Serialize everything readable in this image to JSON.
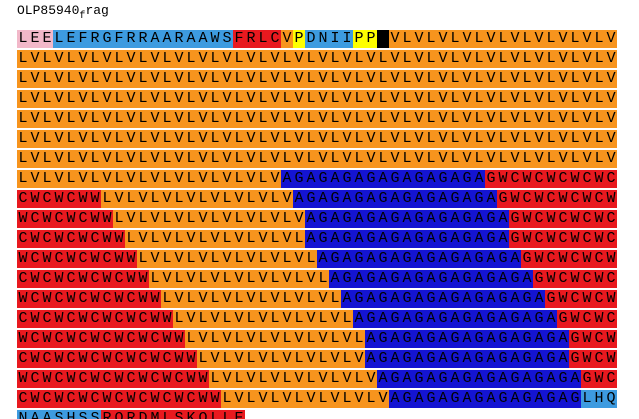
{
  "title": {
    "main": "OLP85940",
    "sub": "f",
    "rest": "rag"
  },
  "rows": [
    [
      {
        "text": "LEE",
        "color": "#f2b8c9"
      },
      {
        "text": "LEFRGFRRAARAAWS",
        "color": "#3d9be0"
      },
      {
        "text": "FRLC",
        "color": "#e8191f"
      },
      {
        "text": "V",
        "color": "#f7941d"
      },
      {
        "text": "P",
        "color": "#ffff00"
      },
      {
        "text": "DNII",
        "color": "#3d9be0"
      },
      {
        "text": "PP",
        "color": "#ffff00"
      },
      {
        "text": "X",
        "color": "#000000"
      },
      {
        "text": "VLVLVLVLVLVLVLVLVLV",
        "color": "#f7941d"
      }
    ],
    [
      {
        "text": "LVLVLVLVLVLVLVLVLVLVLVLVLVLVLVLVLVLVLVLVLVLVLVLVLV",
        "color": "#f7941d"
      }
    ],
    [
      {
        "text": "LVLVLVLVLVLVLVLVLVLVLVLVLVLVLVLVLVLVLVLVLVLVLVLVLV",
        "color": "#f7941d"
      }
    ],
    [
      {
        "text": "LVLVLVLVLVLVLVLVLVLVLVLVLVLVLVLVLVLVLVLVLVLVLVLVLV",
        "color": "#f7941d"
      }
    ],
    [
      {
        "text": "LVLVLVLVLVLVLVLVLVLVLVLVLVLVLVLVLVLVLVLVLVLVLVLVLV",
        "color": "#f7941d"
      }
    ],
    [
      {
        "text": "LVLVLVLVLVLVLVLVLVLVLVLVLVLVLVLVLVLVLVLVLVLVLVLVLV",
        "color": "#f7941d"
      }
    ],
    [
      {
        "text": "LVLVLVLVLVLVLVLVLVLVLVLVLVLVLVLVLVLVLVLVLVLVLVLVLV",
        "color": "#f7941d"
      }
    ],
    [
      {
        "text": "LVLVLVLVLVLVLVLVLVLVLV",
        "color": "#f7941d"
      },
      {
        "text": "AGAGAGAGAGAGAGAGA",
        "color": "#1414d2"
      },
      {
        "text": "GWCWCWCWCWC",
        "color": "#e8191f"
      }
    ],
    [
      {
        "text": "CWCWCWW",
        "color": "#e8191f"
      },
      {
        "text": "LVLVLVLVLVLVLVLV",
        "color": "#f7941d"
      },
      {
        "text": "AGAGAGAGAGAGAGAGA",
        "color": "#1414d2"
      },
      {
        "text": "GWCWCWCWCW",
        "color": "#e8191f"
      }
    ],
    [
      {
        "text": "WCWCWCWW",
        "color": "#e8191f"
      },
      {
        "text": "LVLVLVLVLVLVLVLV",
        "color": "#f7941d"
      },
      {
        "text": "AGAGAGAGAGAGAGAGA",
        "color": "#1414d2"
      },
      {
        "text": "GWCWCWCWC",
        "color": "#e8191f"
      }
    ],
    [
      {
        "text": "CWCWCWCWW",
        "color": "#e8191f"
      },
      {
        "text": "LVLVLVLVLVLVLVL",
        "color": "#f7941d"
      },
      {
        "text": "AGAGAGAGAGAGAGAGA",
        "color": "#1414d2"
      },
      {
        "text": "GWCWCWCWC",
        "color": "#e8191f"
      }
    ],
    [
      {
        "text": "WCWCWCWCWW",
        "color": "#e8191f"
      },
      {
        "text": "LVLVLVLVLVLVLVL",
        "color": "#f7941d"
      },
      {
        "text": "AGAGAGAGAGAGAGAGA",
        "color": "#1414d2"
      },
      {
        "text": "GWCWCWCW",
        "color": "#e8191f"
      }
    ],
    [
      {
        "text": "CWCWCWCWCWW",
        "color": "#e8191f"
      },
      {
        "text": "LVLVLVLVLVLVLVL",
        "color": "#f7941d"
      },
      {
        "text": "AGAGAGAGAGAGAGAGA",
        "color": "#1414d2"
      },
      {
        "text": "GWCWCWC",
        "color": "#e8191f"
      }
    ],
    [
      {
        "text": "WCWCWCWCWCWW",
        "color": "#e8191f"
      },
      {
        "text": "LVLVLVLVLVLVLVL",
        "color": "#f7941d"
      },
      {
        "text": "AGAGAGAGAGAGAGAGA",
        "color": "#1414d2"
      },
      {
        "text": "GWCWCW",
        "color": "#e8191f"
      }
    ],
    [
      {
        "text": "CWCWCWCWCWCWW",
        "color": "#e8191f"
      },
      {
        "text": "LVLVLVLVLVLVLVL",
        "color": "#f7941d"
      },
      {
        "text": "AGAGAGAGAGAGAGAGA",
        "color": "#1414d2"
      },
      {
        "text": "GWCWC",
        "color": "#e8191f"
      }
    ],
    [
      {
        "text": "WCWCWCWCWCWCWW",
        "color": "#e8191f"
      },
      {
        "text": "LVLVLVLVLVLVLVL",
        "color": "#f7941d"
      },
      {
        "text": "AGAGAGAGAGAGAGAGA",
        "color": "#1414d2"
      },
      {
        "text": "GWCW",
        "color": "#e8191f"
      }
    ],
    [
      {
        "text": "CWCWCWCWCWCWCWW",
        "color": "#e8191f"
      },
      {
        "text": "LVLVLVLVLVLVLV",
        "color": "#f7941d"
      },
      {
        "text": "AGAGAGAGAGAGAGAGA",
        "color": "#1414d2"
      },
      {
        "text": "GWCW",
        "color": "#e8191f"
      }
    ],
    [
      {
        "text": "WCWCWCWCWCWCWCWW",
        "color": "#e8191f"
      },
      {
        "text": "LVLVLVLVLVLVLV",
        "color": "#f7941d"
      },
      {
        "text": "AGAGAGAGAGAGAGAGA",
        "color": "#1414d2"
      },
      {
        "text": "GWC",
        "color": "#e8191f"
      }
    ],
    [
      {
        "text": "CWCWCWCWCWCWCWCWW",
        "color": "#e8191f"
      },
      {
        "text": "LVLVLVLVLVLVLV",
        "color": "#f7941d"
      },
      {
        "text": "AGAGAGAGAGAGAGAG",
        "color": "#1414d2"
      },
      {
        "text": "LHQ",
        "color": "#3d9be0"
      }
    ],
    [
      {
        "text": "NAASHSS",
        "color": "#3d9be0"
      },
      {
        "text": "RQRDMLSKQLLE",
        "color": "#e8191f"
      }
    ]
  ]
}
